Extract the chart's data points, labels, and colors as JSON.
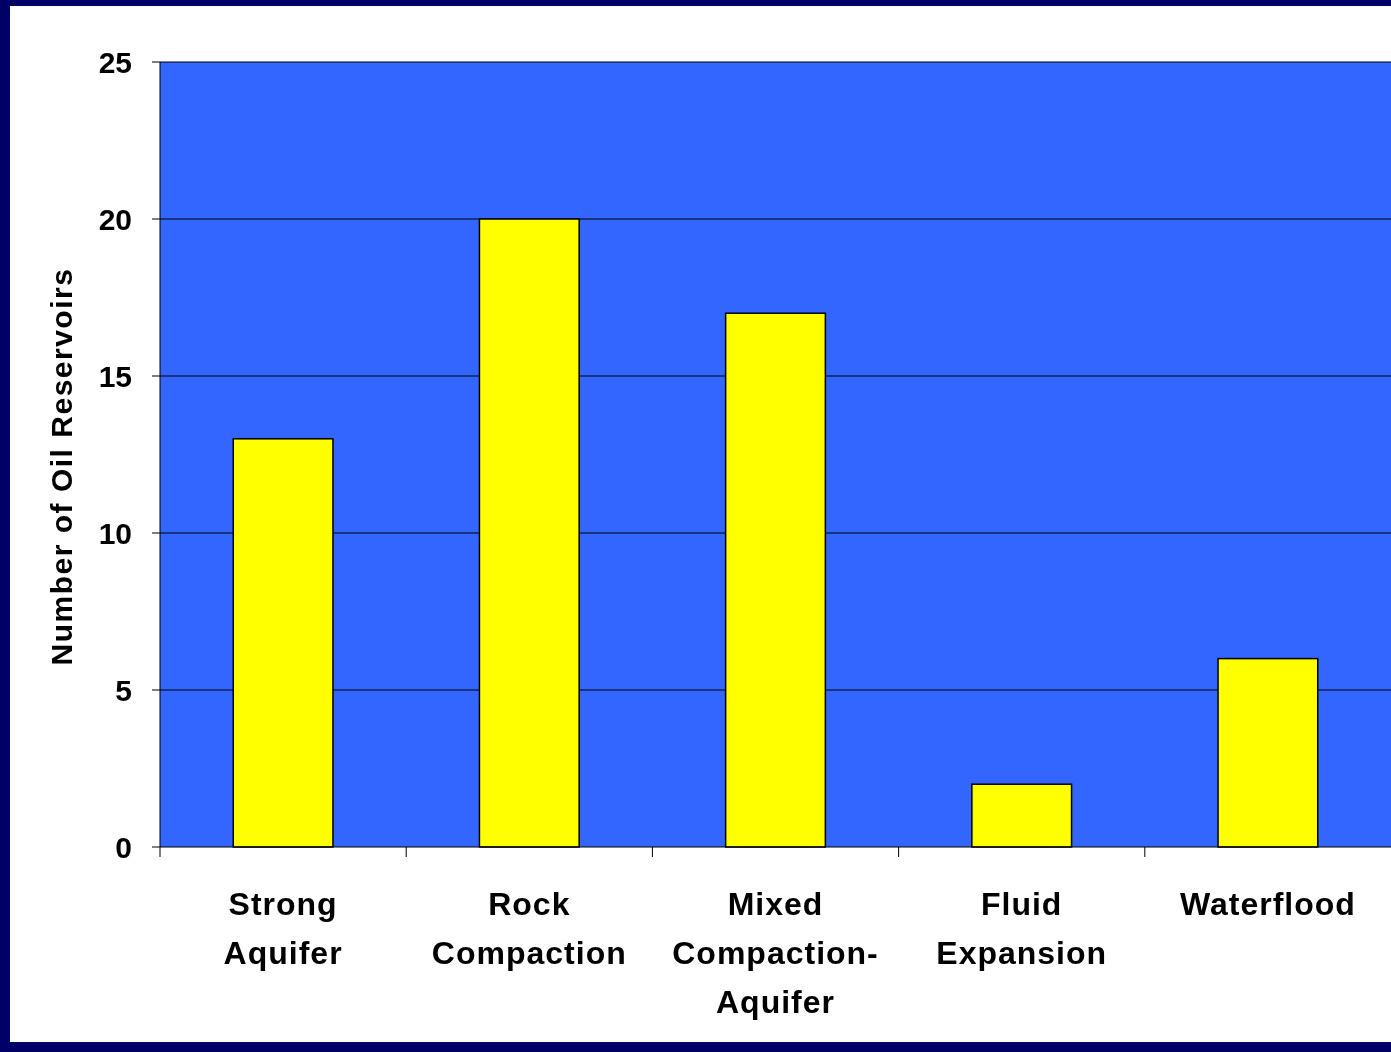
{
  "chart_data": {
    "type": "bar",
    "ylabel": "Number of Oil Reservoirs",
    "categories": [
      "Strong Aquifer",
      "Rock Compaction",
      "Mixed Compaction-Aquifer",
      "Fluid Expansion",
      "Waterflood"
    ],
    "values": [
      13,
      20,
      17,
      2,
      6
    ],
    "color": "#ffff00",
    "ylim": [
      0,
      25
    ],
    "yticks": [
      0,
      5,
      10,
      15,
      20,
      25
    ],
    "grid": "y"
  }
}
